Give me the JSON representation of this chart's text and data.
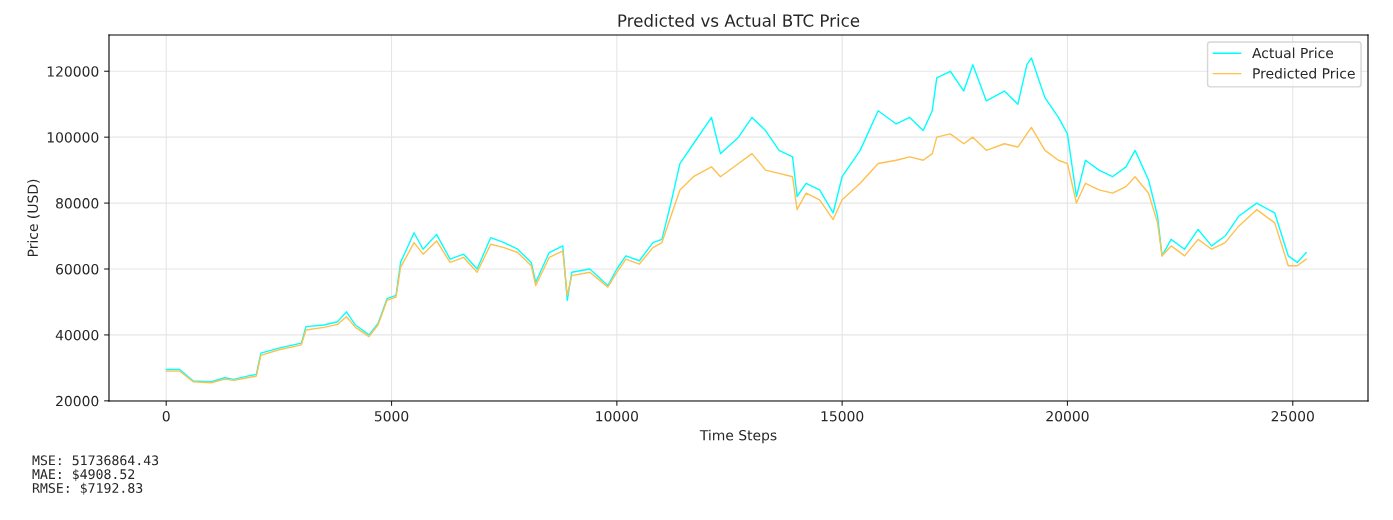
{
  "chart_data": {
    "type": "line",
    "title": "Predicted vs Actual BTC Price",
    "xlabel": "Time Steps",
    "ylabel": "Price (USD)",
    "xlim": [
      -1270,
      26670
    ],
    "ylim": [
      19950,
      131000
    ],
    "xticks": [
      0,
      5000,
      10000,
      15000,
      20000,
      25000
    ],
    "yticks": [
      20000,
      40000,
      60000,
      80000,
      100000,
      120000
    ],
    "grid": true,
    "legend": "top right",
    "line_style": "solid",
    "marker": "none",
    "x": [
      0,
      300,
      600,
      1000,
      1300,
      1500,
      1800,
      2000,
      2100,
      2500,
      3000,
      3100,
      3500,
      3800,
      4000,
      4200,
      4500,
      4700,
      4900,
      5100,
      5200,
      5500,
      5700,
      6000,
      6300,
      6600,
      6900,
      7200,
      7500,
      7800,
      8100,
      8200,
      8500,
      8800,
      8900,
      9000,
      9400,
      9800,
      10000,
      10200,
      10500,
      10800,
      11000,
      11200,
      11400,
      11700,
      12100,
      12300,
      12700,
      13000,
      13300,
      13600,
      13900,
      14000,
      14200,
      14500,
      14800,
      15000,
      15400,
      15800,
      16200,
      16500,
      16800,
      17000,
      17100,
      17400,
      17700,
      17900,
      18200,
      18600,
      18900,
      19100,
      19200,
      19500,
      19800,
      20000,
      20200,
      20400,
      20700,
      21000,
      21300,
      21500,
      21800,
      22000,
      22100,
      22300,
      22600,
      22900,
      23200,
      23500,
      23800,
      24200,
      24600,
      24900,
      25100,
      25300
    ],
    "series": [
      {
        "name": "Actual Price",
        "color": "#00ffff",
        "values": [
          29500,
          29500,
          26000,
          25800,
          27000,
          26500,
          27500,
          28000,
          34500,
          36000,
          37500,
          42500,
          43000,
          44000,
          47000,
          43000,
          40000,
          43500,
          51000,
          52000,
          62000,
          71000,
          66000,
          70500,
          63000,
          64500,
          60000,
          69500,
          68000,
          66000,
          62000,
          56000,
          65000,
          67000,
          50500,
          59000,
          60000,
          55000,
          60000,
          64000,
          62500,
          68000,
          69000,
          80000,
          92000,
          98000,
          106000,
          95000,
          100000,
          106000,
          102000,
          96000,
          94000,
          82000,
          86000,
          84000,
          77000,
          88000,
          96000,
          108000,
          104000,
          106000,
          102000,
          108000,
          118000,
          120000,
          114000,
          122000,
          111000,
          114000,
          110000,
          122000,
          124000,
          112000,
          106000,
          101000,
          82000,
          93000,
          90000,
          88000,
          91000,
          96000,
          87000,
          76000,
          64000,
          69000,
          66000,
          72000,
          67000,
          70000,
          76000,
          80000,
          77000,
          64000,
          62000,
          65000
        ]
      },
      {
        "name": "Predicted Price",
        "color": "#ffc04d",
        "values": [
          29000,
          29000,
          25800,
          25500,
          26600,
          26200,
          27000,
          27500,
          33800,
          35500,
          37000,
          41500,
          42300,
          43200,
          45500,
          42300,
          39500,
          43000,
          50500,
          51500,
          60500,
          68000,
          64500,
          68500,
          62000,
          63500,
          59000,
          67500,
          66500,
          65000,
          61000,
          55000,
          63500,
          65500,
          52000,
          58000,
          59000,
          54500,
          59000,
          63000,
          61500,
          66500,
          68000,
          76000,
          84000,
          88000,
          91000,
          88000,
          92000,
          95000,
          90000,
          89000,
          88000,
          78000,
          83000,
          81000,
          75000,
          81000,
          86000,
          92000,
          93000,
          94000,
          93000,
          95000,
          100000,
          101000,
          98000,
          100000,
          96000,
          98000,
          97000,
          101000,
          103000,
          96000,
          93000,
          92000,
          80000,
          86000,
          84000,
          83000,
          85000,
          88000,
          83000,
          74000,
          64000,
          67000,
          64000,
          69000,
          66000,
          68000,
          73000,
          78000,
          74000,
          61000,
          61000,
          63000
        ]
      }
    ],
    "annotations": [
      "MSE: 51736864.43",
      "MAE: $4908.52",
      "RMSE: $7192.83"
    ]
  }
}
